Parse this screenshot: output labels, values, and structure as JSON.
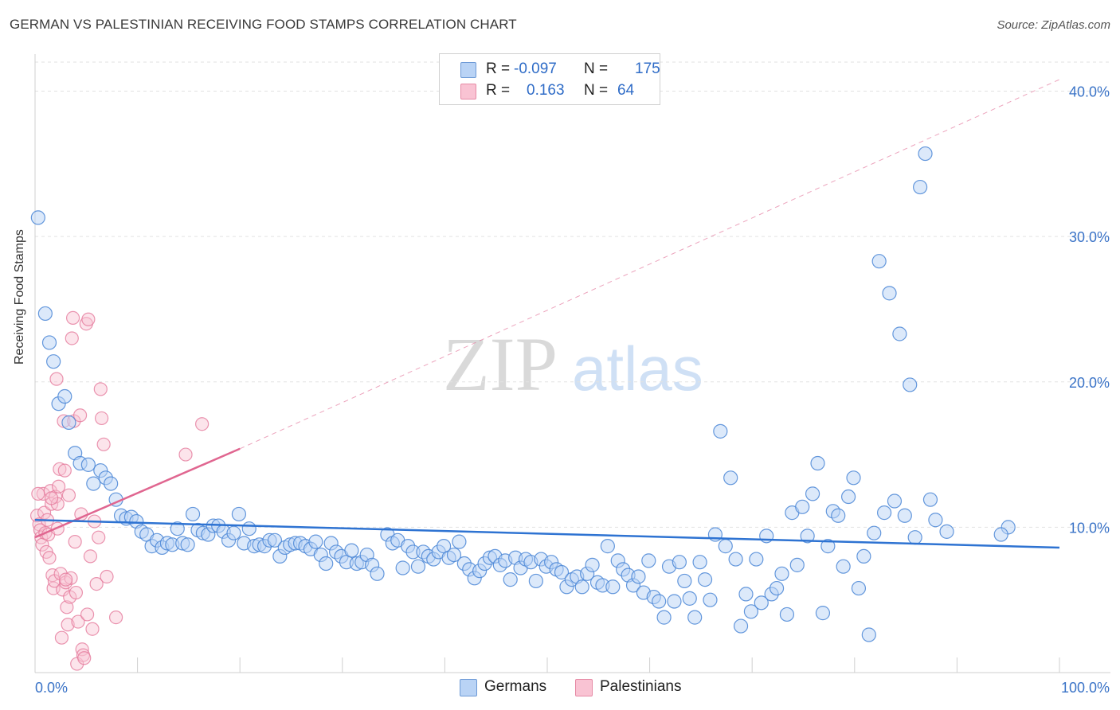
{
  "title": "GERMAN VS PALESTINIAN RECEIVING FOOD STAMPS CORRELATION CHART",
  "source": "Source: ZipAtlas.com",
  "watermark": {
    "zip": "ZIP",
    "atlas": "atlas"
  },
  "legend": {
    "rows": [
      {
        "r_label": "R =",
        "r_value": "-0.097",
        "n_label": "N =",
        "n_value": "175"
      },
      {
        "r_label": "R =",
        "r_value": "0.163",
        "n_label": "N =",
        "n_value": "64"
      }
    ]
  },
  "bottom_legend": {
    "germans": "Germans",
    "palestinians": "Palestinians"
  },
  "colors": {
    "german_fill": "#b9d3f5",
    "german_stroke": "#4a86d6",
    "german_line": "#2e73d2",
    "palestinian_fill": "#f9c3d3",
    "palestinian_stroke": "#e57a9c",
    "palestinian_line": "#e06690",
    "axis_text": "#3a73c7"
  },
  "chart_data": {
    "type": "scatter",
    "title": "GERMAN VS PALESTINIAN RECEIVING FOOD STAMPS CORRELATION CHART",
    "xlabel": "",
    "ylabel": "Receiving Food Stamps",
    "xlim": [
      0,
      100
    ],
    "ylim": [
      0,
      42
    ],
    "x_tick_labels": [
      "0.0%",
      "100.0%"
    ],
    "y_ticks": [
      10,
      20,
      30,
      40
    ],
    "y_tick_labels": [
      "10.0%",
      "20.0%",
      "30.0%",
      "40.0%"
    ],
    "grid": true,
    "series": [
      {
        "name": "Germans",
        "r": -0.097,
        "n": 175,
        "trend": {
          "x": [
            0,
            100
          ],
          "y": [
            10.5,
            8.6
          ]
        },
        "points": [
          [
            0.3,
            31.3
          ],
          [
            1.0,
            24.7
          ],
          [
            1.4,
            22.7
          ],
          [
            1.8,
            21.4
          ],
          [
            2.3,
            18.5
          ],
          [
            2.9,
            19.0
          ],
          [
            3.3,
            17.2
          ],
          [
            3.9,
            15.1
          ],
          [
            4.4,
            14.4
          ],
          [
            5.2,
            14.3
          ],
          [
            5.7,
            13.0
          ],
          [
            6.4,
            13.9
          ],
          [
            6.9,
            13.4
          ],
          [
            7.4,
            13.0
          ],
          [
            7.9,
            11.9
          ],
          [
            8.4,
            10.8
          ],
          [
            8.9,
            10.6
          ],
          [
            9.4,
            10.7
          ],
          [
            9.9,
            10.4
          ],
          [
            10.4,
            9.7
          ],
          [
            10.9,
            9.5
          ],
          [
            11.4,
            8.7
          ],
          [
            11.9,
            9.1
          ],
          [
            12.4,
            8.6
          ],
          [
            12.9,
            8.9
          ],
          [
            13.4,
            8.8
          ],
          [
            13.9,
            9.9
          ],
          [
            14.4,
            8.9
          ],
          [
            14.9,
            8.8
          ],
          [
            15.4,
            10.9
          ],
          [
            15.9,
            9.8
          ],
          [
            16.4,
            9.6
          ],
          [
            16.9,
            9.5
          ],
          [
            17.4,
            10.1
          ],
          [
            17.9,
            10.1
          ],
          [
            18.4,
            9.7
          ],
          [
            18.9,
            9.1
          ],
          [
            19.4,
            9.6
          ],
          [
            19.9,
            10.9
          ],
          [
            20.4,
            8.9
          ],
          [
            20.9,
            9.9
          ],
          [
            21.4,
            8.7
          ],
          [
            21.9,
            8.8
          ],
          [
            22.4,
            8.7
          ],
          [
            22.9,
            9.1
          ],
          [
            23.4,
            9.1
          ],
          [
            23.9,
            8.0
          ],
          [
            24.4,
            8.6
          ],
          [
            24.9,
            8.8
          ],
          [
            25.4,
            8.9
          ],
          [
            25.9,
            8.9
          ],
          [
            26.4,
            8.7
          ],
          [
            26.9,
            8.5
          ],
          [
            27.4,
            9.0
          ],
          [
            27.9,
            8.1
          ],
          [
            28.4,
            7.5
          ],
          [
            28.9,
            8.9
          ],
          [
            29.4,
            8.3
          ],
          [
            29.9,
            8.0
          ],
          [
            30.4,
            7.6
          ],
          [
            30.9,
            8.4
          ],
          [
            31.4,
            7.5
          ],
          [
            31.9,
            7.6
          ],
          [
            32.4,
            8.1
          ],
          [
            32.9,
            7.4
          ],
          [
            33.4,
            6.8
          ],
          [
            34.4,
            9.5
          ],
          [
            34.9,
            8.9
          ],
          [
            35.4,
            9.1
          ],
          [
            35.9,
            7.2
          ],
          [
            36.4,
            8.7
          ],
          [
            36.9,
            8.3
          ],
          [
            37.4,
            7.3
          ],
          [
            37.9,
            8.3
          ],
          [
            38.4,
            8.0
          ],
          [
            38.9,
            7.8
          ],
          [
            39.4,
            8.3
          ],
          [
            39.9,
            8.7
          ],
          [
            40.4,
            7.9
          ],
          [
            40.9,
            8.1
          ],
          [
            41.4,
            9.0
          ],
          [
            41.9,
            7.5
          ],
          [
            42.4,
            7.1
          ],
          [
            42.9,
            6.5
          ],
          [
            43.4,
            7.0
          ],
          [
            43.9,
            7.5
          ],
          [
            44.4,
            7.9
          ],
          [
            44.9,
            8.0
          ],
          [
            45.4,
            7.4
          ],
          [
            45.9,
            7.7
          ],
          [
            46.4,
            6.4
          ],
          [
            46.9,
            7.9
          ],
          [
            47.4,
            7.2
          ],
          [
            47.9,
            7.8
          ],
          [
            48.4,
            7.6
          ],
          [
            48.9,
            6.3
          ],
          [
            49.4,
            7.8
          ],
          [
            49.9,
            7.3
          ],
          [
            50.4,
            7.6
          ],
          [
            50.9,
            7.1
          ],
          [
            51.4,
            6.9
          ],
          [
            51.9,
            5.9
          ],
          [
            52.4,
            6.4
          ],
          [
            52.9,
            6.6
          ],
          [
            53.4,
            5.9
          ],
          [
            53.9,
            6.8
          ],
          [
            54.4,
            7.4
          ],
          [
            54.9,
            6.2
          ],
          [
            55.4,
            6.0
          ],
          [
            55.9,
            8.7
          ],
          [
            56.4,
            5.9
          ],
          [
            56.9,
            7.7
          ],
          [
            57.4,
            7.1
          ],
          [
            57.9,
            6.7
          ],
          [
            58.4,
            6.0
          ],
          [
            58.9,
            6.6
          ],
          [
            59.4,
            5.5
          ],
          [
            59.9,
            7.7
          ],
          [
            60.4,
            5.2
          ],
          [
            60.9,
            4.9
          ],
          [
            61.4,
            3.8
          ],
          [
            61.9,
            7.3
          ],
          [
            62.4,
            4.9
          ],
          [
            62.9,
            7.6
          ],
          [
            63.4,
            6.3
          ],
          [
            63.9,
            5.1
          ],
          [
            64.4,
            3.8
          ],
          [
            64.9,
            7.6
          ],
          [
            65.4,
            6.4
          ],
          [
            65.9,
            5.0
          ],
          [
            66.4,
            9.5
          ],
          [
            66.9,
            16.6
          ],
          [
            67.4,
            8.7
          ],
          [
            67.9,
            13.4
          ],
          [
            68.4,
            7.8
          ],
          [
            68.9,
            3.2
          ],
          [
            69.4,
            5.4
          ],
          [
            69.9,
            4.2
          ],
          [
            70.4,
            7.8
          ],
          [
            70.9,
            4.8
          ],
          [
            71.4,
            9.4
          ],
          [
            71.9,
            5.4
          ],
          [
            72.4,
            5.8
          ],
          [
            72.9,
            6.8
          ],
          [
            73.4,
            4.0
          ],
          [
            73.9,
            11.0
          ],
          [
            74.4,
            7.4
          ],
          [
            74.9,
            11.4
          ],
          [
            75.4,
            9.4
          ],
          [
            75.9,
            12.3
          ],
          [
            76.4,
            14.4
          ],
          [
            76.9,
            4.1
          ],
          [
            77.4,
            8.7
          ],
          [
            77.9,
            11.1
          ],
          [
            78.4,
            10.8
          ],
          [
            78.9,
            7.3
          ],
          [
            79.4,
            12.1
          ],
          [
            79.9,
            13.4
          ],
          [
            80.4,
            5.8
          ],
          [
            80.9,
            8.0
          ],
          [
            81.4,
            2.6
          ],
          [
            81.9,
            9.6
          ],
          [
            82.4,
            28.3
          ],
          [
            82.9,
            11.0
          ],
          [
            83.4,
            26.1
          ],
          [
            83.9,
            11.8
          ],
          [
            84.4,
            23.3
          ],
          [
            84.9,
            10.8
          ],
          [
            85.4,
            19.8
          ],
          [
            85.9,
            9.3
          ],
          [
            86.4,
            33.4
          ],
          [
            86.9,
            35.7
          ],
          [
            87.4,
            11.9
          ],
          [
            87.9,
            10.5
          ],
          [
            89.0,
            9.7
          ],
          [
            95.0,
            10.0
          ],
          [
            94.3,
            9.5
          ]
        ]
      },
      {
        "name": "Palestinians",
        "r": 0.163,
        "n": 64,
        "trend": {
          "x": [
            0,
            20
          ],
          "y": [
            9.3,
            15.4
          ]
        },
        "trend_extension": {
          "x": [
            20,
            100
          ],
          "y": [
            15.4,
            40.8
          ]
        },
        "points": [
          [
            0.2,
            10.8
          ],
          [
            0.4,
            10.2
          ],
          [
            0.5,
            9.8
          ],
          [
            0.6,
            9.3
          ],
          [
            0.7,
            8.8
          ],
          [
            0.8,
            12.3
          ],
          [
            0.9,
            11.0
          ],
          [
            1.0,
            9.6
          ],
          [
            1.1,
            8.3
          ],
          [
            1.2,
            10.5
          ],
          [
            1.3,
            9.5
          ],
          [
            1.4,
            7.9
          ],
          [
            1.5,
            12.5
          ],
          [
            1.6,
            11.6
          ],
          [
            1.7,
            6.7
          ],
          [
            1.8,
            5.8
          ],
          [
            1.9,
            6.3
          ],
          [
            2.0,
            12.1
          ],
          [
            2.1,
            20.2
          ],
          [
            2.2,
            11.6
          ],
          [
            2.3,
            12.8
          ],
          [
            2.4,
            14.0
          ],
          [
            2.5,
            6.8
          ],
          [
            2.6,
            2.4
          ],
          [
            2.7,
            5.7
          ],
          [
            2.8,
            17.3
          ],
          [
            2.9,
            13.9
          ],
          [
            3.0,
            6.2
          ],
          [
            3.1,
            4.5
          ],
          [
            3.2,
            3.3
          ],
          [
            3.3,
            12.2
          ],
          [
            3.4,
            5.2
          ],
          [
            3.5,
            6.5
          ],
          [
            3.6,
            23.0
          ],
          [
            3.7,
            24.4
          ],
          [
            3.8,
            17.3
          ],
          [
            3.9,
            9.0
          ],
          [
            4.0,
            5.5
          ],
          [
            4.1,
            0.6
          ],
          [
            4.2,
            3.5
          ],
          [
            4.4,
            17.7
          ],
          [
            4.5,
            10.9
          ],
          [
            4.6,
            1.6
          ],
          [
            4.7,
            1.2
          ],
          [
            4.8,
            1.0
          ],
          [
            5.0,
            24.0
          ],
          [
            5.2,
            24.3
          ],
          [
            5.4,
            8.0
          ],
          [
            5.6,
            3.0
          ],
          [
            5.8,
            10.4
          ],
          [
            6.0,
            6.1
          ],
          [
            6.2,
            9.3
          ],
          [
            6.4,
            19.5
          ],
          [
            6.5,
            17.5
          ],
          [
            6.7,
            15.7
          ],
          [
            7.0,
            6.6
          ],
          [
            7.9,
            3.8
          ],
          [
            16.3,
            17.1
          ],
          [
            14.7,
            15.0
          ],
          [
            5.1,
            4.0
          ],
          [
            3.0,
            6.4
          ],
          [
            2.2,
            9.9
          ],
          [
            0.3,
            12.3
          ],
          [
            1.6,
            12.0
          ]
        ]
      }
    ]
  }
}
